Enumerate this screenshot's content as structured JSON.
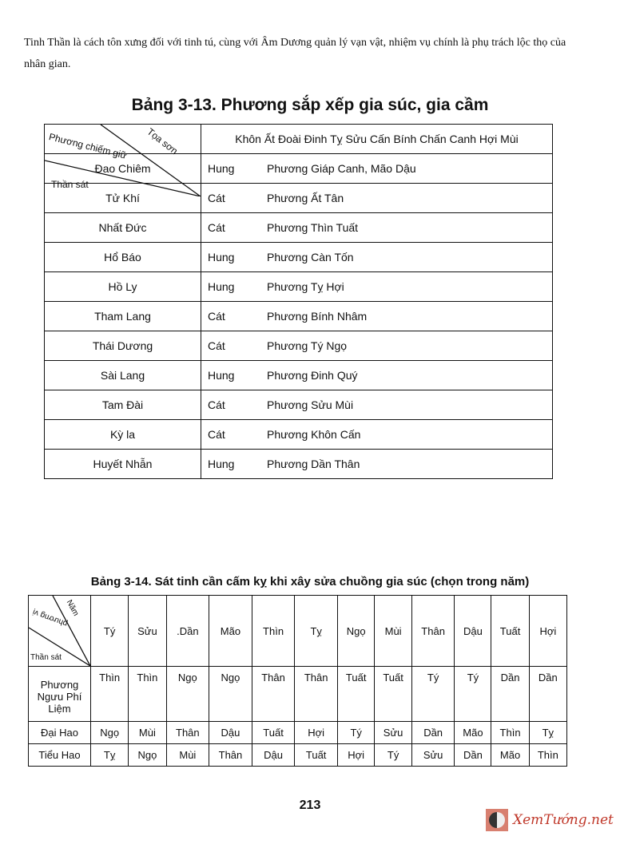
{
  "intro": "Tinh Thần là cách tôn xưng đối với tinh tú, cùng với Âm Dương quản lý vạn vật, nhiệm vụ chính là phụ trách lộc thọ của nhân gian.",
  "table1": {
    "title": "Bảng 3-13. Phương sắp xếp gia súc, gia cầm",
    "diag": {
      "top": "Tọa sơn",
      "middle": "Phương chiếm giữ",
      "bottom": "Thần sát"
    },
    "header": "Khôn Ất Đoài Đinh Tỵ Sửu Cấn Bính Chấn Canh Hợi Mùi",
    "rows": [
      {
        "name": "Đao Chiêm",
        "type": "Hung",
        "dir": "Phương Giáp Canh, Mão Dậu"
      },
      {
        "name": "Tử Khí",
        "type": "Cát",
        "dir": "Phương Ất Tân"
      },
      {
        "name": "Nhất Đức",
        "type": "Cát",
        "dir": "Phương Thìn Tuất"
      },
      {
        "name": "Hổ Báo",
        "type": "Hung",
        "dir": "Phương Càn Tốn"
      },
      {
        "name": "Hồ Ly",
        "type": "Hung",
        "dir": "Phương Tỵ Hợi"
      },
      {
        "name": "Tham Lang",
        "type": "Cát",
        "dir": "Phương Bính Nhâm"
      },
      {
        "name": "Thái Dương",
        "type": "Cát",
        "dir": "Phương Tý Ngọ"
      },
      {
        "name": "Sài Lang",
        "type": "Hung",
        "dir": "Phương Đinh Quý"
      },
      {
        "name": "Tam Đài",
        "type": "Cát",
        "dir": "Phương Sửu Mùi"
      },
      {
        "name": "Kỳ la",
        "type": "Cát",
        "dir": "Phương Khôn Cấn"
      },
      {
        "name": "Huyết Nhẫn",
        "type": "Hung",
        "dir": "Phương Dần Thân"
      }
    ]
  },
  "table2": {
    "title": "Bảng 3-14. Sát tinh cần cấm kỵ khi xây sửa chuồng gia súc (chọn trong năm)",
    "diag": {
      "top": "Năm",
      "middle": "phương vị",
      "bottom": "Thần sát"
    },
    "years": [
      "Tý",
      "Sửu",
      ".Dần",
      "Mão",
      "Thìn",
      "Tỵ",
      "Ngọ",
      "Mùi",
      "Thân",
      "Dậu",
      "Tuất",
      "Hợi"
    ],
    "rows": [
      {
        "name": "Phương Ngưu Phí Liệm",
        "values": [
          "Thìn",
          "Thìn",
          "Ngọ",
          "Ngọ",
          "Thân",
          "Thân",
          "Tuất",
          "Tuất",
          "Tý",
          "Tý",
          "Dần",
          "Dần"
        ]
      },
      {
        "name": "Đại Hao",
        "values": [
          "Ngọ",
          "Mùi",
          "Thân",
          "Dậu",
          "Tuất",
          "Hợi",
          "Tý",
          "Sửu",
          "Dần",
          "Mão",
          "Thìn",
          "Tỵ"
        ]
      },
      {
        "name": "Tiểu Hao",
        "values": [
          "Tỵ",
          "Ngọ",
          "Mùi",
          "Thân",
          "Dậu",
          "Tuất",
          "Hợi",
          "Tý",
          "Sửu",
          "Dần",
          "Mão",
          "Thìn"
        ]
      }
    ]
  },
  "page_number": "213",
  "watermark": "XemTướng.net"
}
